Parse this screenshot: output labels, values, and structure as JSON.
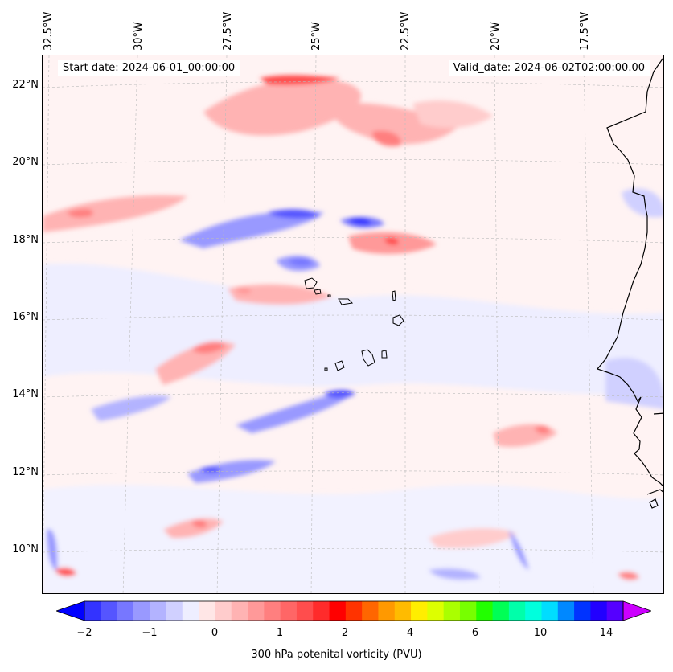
{
  "header": {
    "start_date": "Start date: 2024-06-01_00:00:00",
    "valid_date": "Valid_date: 2024-06-02T02:00:00.00"
  },
  "axes": {
    "lon_labels": [
      "32.5°W",
      "30°W",
      "27.5°W",
      "25°W",
      "22.5°W",
      "20°W",
      "17.5°W"
    ],
    "lat_labels": [
      "22°N",
      "20°N",
      "18°N",
      "16°N",
      "14°N",
      "12°N",
      "10°N"
    ],
    "gridlines": true
  },
  "colorbar": {
    "label": "300 hPa potenital vorticity (PVU)",
    "ticks": [
      "−2",
      "−1",
      "0",
      "1",
      "2",
      "4",
      "6",
      "10",
      "14"
    ],
    "colors": [
      "#1a1aff",
      "#3333ff",
      "#5555ff",
      "#7777ff",
      "#9999ff",
      "#b3b3ff",
      "#d0d0ff",
      "#eeeeff",
      "#ffe6e6",
      "#ffcccc",
      "#ffb3b3",
      "#ff9999",
      "#ff7f7f",
      "#ff6666",
      "#ff4d4d",
      "#ff2b2b",
      "#ff0000",
      "#ff3300",
      "#ff6600",
      "#ff9900",
      "#ffbb00",
      "#ffee00",
      "#ddff00",
      "#aaff00",
      "#77ff00",
      "#22ff00",
      "#00ff55",
      "#00ffaa",
      "#00ffdd",
      "#00ddff",
      "#0088ff",
      "#0033ff",
      "#2200ff",
      "#5500ff",
      "#9900ff"
    ],
    "extend": "both"
  },
  "map": {
    "background": "#fff3f3",
    "coastline_color": "#000000"
  }
}
